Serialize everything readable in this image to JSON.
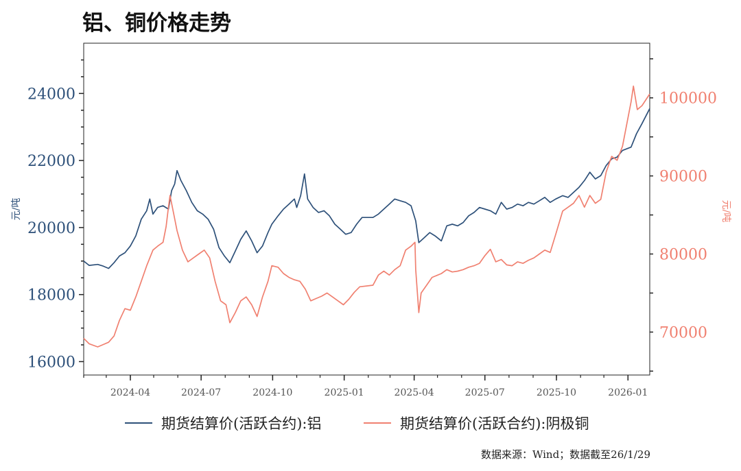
{
  "title": "铝、铜价格走势",
  "source": "数据来源：Wind；数据截至26/1/29",
  "chart_data": {
    "type": "line",
    "title": "铝、铜价格走势",
    "xlabel": "",
    "y_left_label": "元/吨",
    "y_right_label": "元/吨",
    "x_range": [
      "2024-02-01",
      "2026-01-29"
    ],
    "x_ticks": [
      "2024-04",
      "2024-07",
      "2024-10",
      "2025-01",
      "2025-04",
      "2025-07",
      "2025-10",
      "2026-01"
    ],
    "y_left_range": [
      15600,
      25500
    ],
    "y_left_ticks": [
      16000,
      18000,
      20000,
      22000,
      24000
    ],
    "y_right_range": [
      64500,
      107000
    ],
    "y_right_ticks": [
      70000,
      80000,
      90000,
      100000
    ],
    "grid": false,
    "legend_position": "bottom",
    "colors": {
      "aluminum": "#2d5079",
      "copper": "#f08070"
    },
    "series": [
      {
        "name": "期货结算价(活跃合约):铝",
        "axis": "left",
        "points": [
          [
            "2024-02-01",
            19000
          ],
          [
            "2024-02-08",
            18870
          ],
          [
            "2024-02-19",
            18900
          ],
          [
            "2024-02-26",
            18850
          ],
          [
            "2024-03-04",
            18780
          ],
          [
            "2024-03-11",
            18950
          ],
          [
            "2024-03-18",
            19150
          ],
          [
            "2024-03-25",
            19250
          ],
          [
            "2024-04-01",
            19450
          ],
          [
            "2024-04-08",
            19750
          ],
          [
            "2024-04-15",
            20250
          ],
          [
            "2024-04-22",
            20500
          ],
          [
            "2024-04-26",
            20850
          ],
          [
            "2024-04-30",
            20400
          ],
          [
            "2024-05-06",
            20600
          ],
          [
            "2024-05-13",
            20650
          ],
          [
            "2024-05-20",
            20550
          ],
          [
            "2024-05-24",
            21100
          ],
          [
            "2024-05-28",
            21300
          ],
          [
            "2024-05-31",
            21700
          ],
          [
            "2024-06-05",
            21400
          ],
          [
            "2024-06-12",
            21100
          ],
          [
            "2024-06-19",
            20750
          ],
          [
            "2024-06-26",
            20500
          ],
          [
            "2024-07-03",
            20400
          ],
          [
            "2024-07-10",
            20250
          ],
          [
            "2024-07-17",
            19950
          ],
          [
            "2024-07-24",
            19400
          ],
          [
            "2024-07-31",
            19150
          ],
          [
            "2024-08-07",
            18950
          ],
          [
            "2024-08-14",
            19300
          ],
          [
            "2024-08-21",
            19650
          ],
          [
            "2024-08-28",
            19900
          ],
          [
            "2024-09-04",
            19600
          ],
          [
            "2024-09-11",
            19250
          ],
          [
            "2024-09-18",
            19450
          ],
          [
            "2024-09-25",
            19850
          ],
          [
            "2024-09-30",
            20100
          ],
          [
            "2024-10-08",
            20350
          ],
          [
            "2024-10-15",
            20550
          ],
          [
            "2024-10-22",
            20700
          ],
          [
            "2024-10-29",
            20850
          ],
          [
            "2024-11-01",
            20600
          ],
          [
            "2024-11-06",
            20950
          ],
          [
            "2024-11-11",
            21600
          ],
          [
            "2024-11-15",
            20850
          ],
          [
            "2024-11-22",
            20600
          ],
          [
            "2024-11-29",
            20450
          ],
          [
            "2024-12-06",
            20500
          ],
          [
            "2024-12-13",
            20350
          ],
          [
            "2024-12-20",
            20100
          ],
          [
            "2024-12-27",
            19950
          ],
          [
            "2025-01-03",
            19800
          ],
          [
            "2025-01-10",
            19850
          ],
          [
            "2025-01-17",
            20100
          ],
          [
            "2025-01-24",
            20300
          ],
          [
            "2025-02-07",
            20300
          ],
          [
            "2025-02-14",
            20400
          ],
          [
            "2025-02-21",
            20550
          ],
          [
            "2025-02-28",
            20700
          ],
          [
            "2025-03-07",
            20850
          ],
          [
            "2025-03-14",
            20800
          ],
          [
            "2025-03-21",
            20750
          ],
          [
            "2025-03-28",
            20650
          ],
          [
            "2025-04-03",
            20200
          ],
          [
            "2025-04-07",
            19550
          ],
          [
            "2025-04-14",
            19700
          ],
          [
            "2025-04-21",
            19850
          ],
          [
            "2025-04-28",
            19750
          ],
          [
            "2025-05-06",
            19600
          ],
          [
            "2025-05-13",
            20050
          ],
          [
            "2025-05-20",
            20100
          ],
          [
            "2025-05-27",
            20050
          ],
          [
            "2025-06-03",
            20150
          ],
          [
            "2025-06-10",
            20350
          ],
          [
            "2025-06-17",
            20450
          ],
          [
            "2025-06-24",
            20600
          ],
          [
            "2025-07-01",
            20550
          ],
          [
            "2025-07-08",
            20500
          ],
          [
            "2025-07-15",
            20400
          ],
          [
            "2025-07-22",
            20750
          ],
          [
            "2025-07-29",
            20550
          ],
          [
            "2025-08-05",
            20600
          ],
          [
            "2025-08-12",
            20700
          ],
          [
            "2025-08-19",
            20650
          ],
          [
            "2025-08-26",
            20750
          ],
          [
            "2025-09-02",
            20700
          ],
          [
            "2025-09-09",
            20800
          ],
          [
            "2025-09-16",
            20900
          ],
          [
            "2025-09-23",
            20750
          ],
          [
            "2025-09-30",
            20850
          ],
          [
            "2025-10-09",
            20950
          ],
          [
            "2025-10-16",
            20900
          ],
          [
            "2025-10-23",
            21050
          ],
          [
            "2025-10-30",
            21200
          ],
          [
            "2025-11-06",
            21400
          ],
          [
            "2025-11-13",
            21650
          ],
          [
            "2025-11-20",
            21450
          ],
          [
            "2025-11-27",
            21550
          ],
          [
            "2025-12-04",
            21850
          ],
          [
            "2025-12-11",
            22050
          ],
          [
            "2025-12-18",
            22100
          ],
          [
            "2025-12-25",
            22300
          ],
          [
            "2026-01-05",
            22400
          ],
          [
            "2026-01-12",
            22800
          ],
          [
            "2026-01-19",
            23100
          ],
          [
            "2026-01-29",
            23550
          ]
        ]
      },
      {
        "name": "期货结算价(活跃合约):阴极铜",
        "axis": "right",
        "points": [
          [
            "2024-02-01",
            69200
          ],
          [
            "2024-02-08",
            68500
          ],
          [
            "2024-02-19",
            68100
          ],
          [
            "2024-02-26",
            68400
          ],
          [
            "2024-03-04",
            68700
          ],
          [
            "2024-03-11",
            69500
          ],
          [
            "2024-03-18",
            71500
          ],
          [
            "2024-03-25",
            73000
          ],
          [
            "2024-04-01",
            72800
          ],
          [
            "2024-04-08",
            74500
          ],
          [
            "2024-04-15",
            76500
          ],
          [
            "2024-04-22",
            78500
          ],
          [
            "2024-04-30",
            80500
          ],
          [
            "2024-05-06",
            81000
          ],
          [
            "2024-05-13",
            81500
          ],
          [
            "2024-05-17",
            83500
          ],
          [
            "2024-05-20",
            86000
          ],
          [
            "2024-05-22",
            87500
          ],
          [
            "2024-05-27",
            85000
          ],
          [
            "2024-05-31",
            83000
          ],
          [
            "2024-06-07",
            80500
          ],
          [
            "2024-06-14",
            79000
          ],
          [
            "2024-06-21",
            79500
          ],
          [
            "2024-06-28",
            80000
          ],
          [
            "2024-07-05",
            80500
          ],
          [
            "2024-07-12",
            79500
          ],
          [
            "2024-07-19",
            76500
          ],
          [
            "2024-07-26",
            74000
          ],
          [
            "2024-08-02",
            73500
          ],
          [
            "2024-08-07",
            71200
          ],
          [
            "2024-08-14",
            72500
          ],
          [
            "2024-08-21",
            74000
          ],
          [
            "2024-08-28",
            74500
          ],
          [
            "2024-09-04",
            73500
          ],
          [
            "2024-09-11",
            72000
          ],
          [
            "2024-09-18",
            74500
          ],
          [
            "2024-09-25",
            76500
          ],
          [
            "2024-09-30",
            78500
          ],
          [
            "2024-10-08",
            78300
          ],
          [
            "2024-10-15",
            77500
          ],
          [
            "2024-10-22",
            77000
          ],
          [
            "2024-10-29",
            76700
          ],
          [
            "2024-11-05",
            76500
          ],
          [
            "2024-11-12",
            75500
          ],
          [
            "2024-11-19",
            74000
          ],
          [
            "2024-11-26",
            74300
          ],
          [
            "2024-12-03",
            74600
          ],
          [
            "2024-12-10",
            75000
          ],
          [
            "2024-12-17",
            74500
          ],
          [
            "2024-12-24",
            74000
          ],
          [
            "2024-12-31",
            73500
          ],
          [
            "2025-01-07",
            74200
          ],
          [
            "2025-01-14",
            75100
          ],
          [
            "2025-01-21",
            75800
          ],
          [
            "2025-02-07",
            76000
          ],
          [
            "2025-02-14",
            77300
          ],
          [
            "2025-02-21",
            77800
          ],
          [
            "2025-02-28",
            77300
          ],
          [
            "2025-03-07",
            78000
          ],
          [
            "2025-03-14",
            78500
          ],
          [
            "2025-03-21",
            80500
          ],
          [
            "2025-03-28",
            81000
          ],
          [
            "2025-04-02",
            81500
          ],
          [
            "2025-04-03",
            78000
          ],
          [
            "2025-04-07",
            72500
          ],
          [
            "2025-04-10",
            75000
          ],
          [
            "2025-04-17",
            76000
          ],
          [
            "2025-04-24",
            77000
          ],
          [
            "2025-05-06",
            77500
          ],
          [
            "2025-05-13",
            78000
          ],
          [
            "2025-05-20",
            77700
          ],
          [
            "2025-05-27",
            77800
          ],
          [
            "2025-06-03",
            78000
          ],
          [
            "2025-06-10",
            78300
          ],
          [
            "2025-06-17",
            78500
          ],
          [
            "2025-06-24",
            78800
          ],
          [
            "2025-07-01",
            79800
          ],
          [
            "2025-07-08",
            80600
          ],
          [
            "2025-07-15",
            79000
          ],
          [
            "2025-07-22",
            79300
          ],
          [
            "2025-07-29",
            78600
          ],
          [
            "2025-08-05",
            78500
          ],
          [
            "2025-08-12",
            79000
          ],
          [
            "2025-08-19",
            78800
          ],
          [
            "2025-08-26",
            79200
          ],
          [
            "2025-09-02",
            79500
          ],
          [
            "2025-09-09",
            80000
          ],
          [
            "2025-09-16",
            80500
          ],
          [
            "2025-09-23",
            80200
          ],
          [
            "2025-09-30",
            82500
          ],
          [
            "2025-10-09",
            85500
          ],
          [
            "2025-10-16",
            86000
          ],
          [
            "2025-10-23",
            86500
          ],
          [
            "2025-10-30",
            87500
          ],
          [
            "2025-11-06",
            86000
          ],
          [
            "2025-11-13",
            87500
          ],
          [
            "2025-11-20",
            86500
          ],
          [
            "2025-11-27",
            87000
          ],
          [
            "2025-12-04",
            90500
          ],
          [
            "2025-12-11",
            92500
          ],
          [
            "2025-12-18",
            92000
          ],
          [
            "2025-12-25",
            93800
          ],
          [
            "2026-01-05",
            99500
          ],
          [
            "2026-01-08",
            101500
          ],
          [
            "2026-01-13",
            98500
          ],
          [
            "2026-01-19",
            99000
          ],
          [
            "2026-01-29",
            100500
          ]
        ]
      }
    ]
  }
}
